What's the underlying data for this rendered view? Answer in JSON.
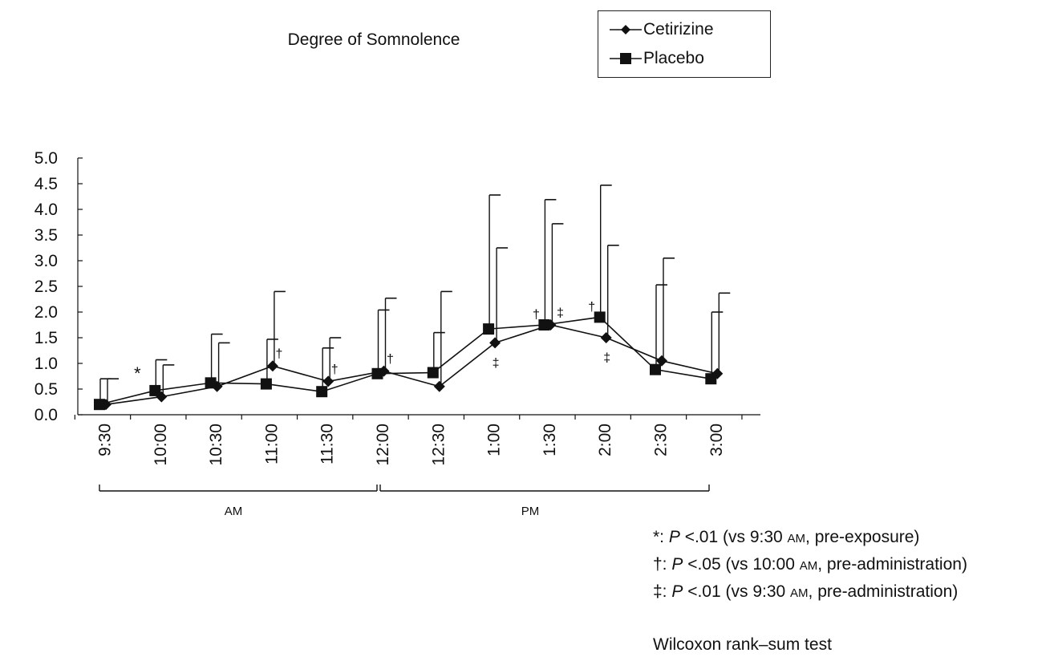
{
  "chart_data": {
    "type": "line",
    "title": "Degree of Somnolence",
    "categories": [
      "9:30",
      "10:00",
      "10:30",
      "11:00",
      "11:30",
      "12:00",
      "12:30",
      "1:00",
      "1:30",
      "2:00",
      "2:30",
      "3:00"
    ],
    "ylim": [
      0,
      5.0
    ],
    "yticks": [
      "0.0",
      "0.5",
      "1.0",
      "1.5",
      "2.0",
      "2.5",
      "3.0",
      "3.5",
      "4.0",
      "4.5",
      "5.0"
    ],
    "legend_position": "top-right",
    "series": [
      {
        "name": "Cetirizine",
        "marker": "diamond",
        "values": [
          0.2,
          0.35,
          0.55,
          0.95,
          0.65,
          0.85,
          0.55,
          1.4,
          1.75,
          1.5,
          1.05,
          0.8
        ],
        "error_upper": [
          0.7,
          0.97,
          1.4,
          2.4,
          1.5,
          2.27,
          2.4,
          3.25,
          3.72,
          3.3,
          3.05,
          2.37
        ]
      },
      {
        "name": "Placebo",
        "marker": "square",
        "values": [
          0.2,
          0.47,
          0.62,
          0.6,
          0.45,
          0.8,
          0.82,
          1.67,
          1.75,
          1.9,
          0.88,
          0.7
        ],
        "error_upper": [
          0.7,
          1.07,
          1.57,
          1.47,
          1.3,
          2.04,
          1.6,
          4.28,
          4.19,
          4.47,
          2.53,
          2.0
        ]
      }
    ],
    "periods": [
      {
        "label": "AM",
        "from": "9:30",
        "to": "12:00"
      },
      {
        "label": "PM",
        "from": "12:00",
        "to": "3:00"
      }
    ],
    "annotations": [
      {
        "symbol": "*",
        "category": "10:00",
        "series": "Placebo"
      },
      {
        "symbol": "†",
        "category": "11:00",
        "series": "Cetirizine"
      },
      {
        "symbol": "†",
        "category": "11:30",
        "series": "Cetirizine"
      },
      {
        "symbol": "†",
        "category": "12:00",
        "series": "Cetirizine"
      },
      {
        "symbol": "‡",
        "category": "1:00",
        "series": "Cetirizine"
      },
      {
        "symbol": "†",
        "category": "1:30",
        "series": "Placebo"
      },
      {
        "symbol": "‡",
        "category": "1:30",
        "series": "Cetirizine"
      },
      {
        "symbol": "†",
        "category": "2:00",
        "series": "Placebo"
      },
      {
        "symbol": "‡",
        "category": "2:00",
        "series": "Cetirizine"
      }
    ]
  },
  "footnotes": {
    "star_prefix": "*: ",
    "dagger_prefix": "†: ",
    "ddagger_prefix": "‡: ",
    "p": "P",
    "p01": " <.01 (vs 9:30 ",
    "p05": " <.05 (vs 10:00 ",
    "am": "AM",
    "pre_exposure": ", pre-exposure)",
    "pre_administration": ", pre-administration)",
    "test": "Wilcoxon rank–sum test"
  }
}
